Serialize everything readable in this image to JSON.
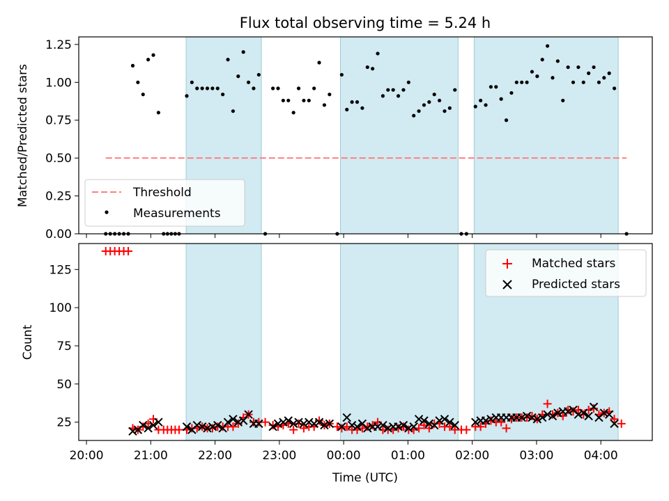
{
  "chart_data": {
    "title": "Flux total observing time = 5.24 h",
    "xlabel": "Time (UTC)",
    "x_unit": "hours since 20:00 UTC",
    "xlim": [
      -0.12,
      8.8
    ],
    "xticks": [
      {
        "v": 0,
        "label": "20:00"
      },
      {
        "v": 1,
        "label": "21:00"
      },
      {
        "v": 2,
        "label": "22:00"
      },
      {
        "v": 3,
        "label": "23:00"
      },
      {
        "v": 4,
        "label": "00:00"
      },
      {
        "v": 5,
        "label": "01:00"
      },
      {
        "v": 6,
        "label": "02:00"
      },
      {
        "v": 7,
        "label": "03:00"
      },
      {
        "v": 8,
        "label": "04:00"
      }
    ],
    "observing_intervals": [
      [
        1.55,
        2.72
      ],
      [
        3.95,
        5.78
      ],
      [
        6.03,
        8.27
      ]
    ],
    "shade_color": "#add8e6",
    "top": {
      "type": "scatter",
      "ylabel": "Matched/Predicted stars",
      "ylim": [
        0,
        1.3
      ],
      "yticks": [
        0,
        0.25,
        0.5,
        0.75,
        1.0,
        1.25
      ],
      "ytick_labels": [
        "0.00",
        "0.25",
        "0.50",
        "0.75",
        "1.00",
        "1.25"
      ],
      "threshold": {
        "name": "Threshold",
        "y": 0.5,
        "x": [
          0.3,
          8.4
        ],
        "color": "#ff7f7f"
      },
      "measurements": {
        "name": "Measurements",
        "color": "#000000",
        "points": [
          [
            0.3,
            0
          ],
          [
            0.37,
            0
          ],
          [
            0.44,
            0
          ],
          [
            0.51,
            0
          ],
          [
            0.58,
            0
          ],
          [
            0.65,
            0
          ],
          [
            0.72,
            1.11
          ],
          [
            0.8,
            1.0
          ],
          [
            0.88,
            0.92
          ],
          [
            0.96,
            1.15
          ],
          [
            1.04,
            1.18
          ],
          [
            1.12,
            0.8
          ],
          [
            1.2,
            0
          ],
          [
            1.26,
            0
          ],
          [
            1.32,
            0
          ],
          [
            1.38,
            0
          ],
          [
            1.44,
            0
          ],
          [
            1.56,
            0.91
          ],
          [
            1.64,
            1.0
          ],
          [
            1.72,
            0.96
          ],
          [
            1.8,
            0.96
          ],
          [
            1.88,
            0.96
          ],
          [
            1.96,
            0.96
          ],
          [
            2.04,
            0.96
          ],
          [
            2.12,
            0.92
          ],
          [
            2.2,
            1.15
          ],
          [
            2.28,
            0.81
          ],
          [
            2.36,
            1.04
          ],
          [
            2.44,
            1.2
          ],
          [
            2.52,
            1.0
          ],
          [
            2.6,
            0.96
          ],
          [
            2.68,
            1.05
          ],
          [
            2.78,
            0
          ],
          [
            2.9,
            0.96
          ],
          [
            2.98,
            0.96
          ],
          [
            3.06,
            0.88
          ],
          [
            3.14,
            0.88
          ],
          [
            3.22,
            0.8
          ],
          [
            3.3,
            0.96
          ],
          [
            3.38,
            0.88
          ],
          [
            3.46,
            0.88
          ],
          [
            3.54,
            0.96
          ],
          [
            3.62,
            1.13
          ],
          [
            3.7,
            0.85
          ],
          [
            3.78,
            0.92
          ],
          [
            3.9,
            0
          ],
          [
            3.97,
            1.05
          ],
          [
            4.05,
            0.82
          ],
          [
            4.13,
            0.87
          ],
          [
            4.21,
            0.87
          ],
          [
            4.29,
            0.83
          ],
          [
            4.37,
            1.1
          ],
          [
            4.45,
            1.09
          ],
          [
            4.53,
            1.19
          ],
          [
            4.61,
            0.91
          ],
          [
            4.69,
            0.95
          ],
          [
            4.77,
            0.95
          ],
          [
            4.85,
            0.91
          ],
          [
            4.93,
            0.95
          ],
          [
            5.01,
            1.0
          ],
          [
            5.09,
            0.78
          ],
          [
            5.17,
            0.81
          ],
          [
            5.25,
            0.85
          ],
          [
            5.33,
            0.87
          ],
          [
            5.41,
            0.92
          ],
          [
            5.49,
            0.88
          ],
          [
            5.57,
            0.81
          ],
          [
            5.65,
            0.83
          ],
          [
            5.73,
            0.95
          ],
          [
            5.83,
            0
          ],
          [
            5.91,
            0
          ],
          [
            6.05,
            0.84
          ],
          [
            6.13,
            0.88
          ],
          [
            6.21,
            0.85
          ],
          [
            6.29,
            0.97
          ],
          [
            6.37,
            0.97
          ],
          [
            6.45,
            0.89
          ],
          [
            6.53,
            0.75
          ],
          [
            6.61,
            0.93
          ],
          [
            6.69,
            1.0
          ],
          [
            6.77,
            1.0
          ],
          [
            6.85,
            1.0
          ],
          [
            6.93,
            1.07
          ],
          [
            7.01,
            1.04
          ],
          [
            7.09,
            1.15
          ],
          [
            7.17,
            1.24
          ],
          [
            7.25,
            1.03
          ],
          [
            7.33,
            1.14
          ],
          [
            7.41,
            0.88
          ],
          [
            7.49,
            1.1
          ],
          [
            7.57,
            1.0
          ],
          [
            7.65,
            1.1
          ],
          [
            7.73,
            1.0
          ],
          [
            7.81,
            1.06
          ],
          [
            7.89,
            1.1
          ],
          [
            7.97,
            1.0
          ],
          [
            8.05,
            1.03
          ],
          [
            8.13,
            1.06
          ],
          [
            8.21,
            0.96
          ],
          [
            8.4,
            0
          ]
        ]
      },
      "legend": "lower-left"
    },
    "bottom": {
      "type": "scatter",
      "ylabel": "Count",
      "ylim": [
        13,
        142
      ],
      "yticks": [
        25,
        50,
        75,
        100,
        125
      ],
      "ytick_labels": [
        "25",
        "50",
        "75",
        "100",
        "125"
      ],
      "matched": {
        "name": "Matched stars",
        "color": "#ff0000",
        "points": [
          [
            0.3,
            137
          ],
          [
            0.37,
            137
          ],
          [
            0.44,
            137
          ],
          [
            0.51,
            137
          ],
          [
            0.58,
            137
          ],
          [
            0.65,
            137
          ],
          [
            0.72,
            21
          ],
          [
            0.8,
            20
          ],
          [
            0.88,
            22
          ],
          [
            0.96,
            24
          ],
          [
            1.04,
            27
          ],
          [
            1.12,
            20
          ],
          [
            1.2,
            20
          ],
          [
            1.26,
            20
          ],
          [
            1.32,
            20
          ],
          [
            1.38,
            20
          ],
          [
            1.44,
            20
          ],
          [
            1.56,
            20
          ],
          [
            1.64,
            21
          ],
          [
            1.72,
            21
          ],
          [
            1.8,
            22
          ],
          [
            1.88,
            21
          ],
          [
            1.96,
            21
          ],
          [
            2.04,
            22
          ],
          [
            2.12,
            22
          ],
          [
            2.2,
            22
          ],
          [
            2.28,
            22
          ],
          [
            2.36,
            24
          ],
          [
            2.44,
            28
          ],
          [
            2.52,
            30
          ],
          [
            2.6,
            25
          ],
          [
            2.68,
            25
          ],
          [
            2.78,
            25
          ],
          [
            2.9,
            23
          ],
          [
            2.98,
            22
          ],
          [
            3.06,
            23
          ],
          [
            3.14,
            24
          ],
          [
            3.22,
            20
          ],
          [
            3.3,
            24
          ],
          [
            3.38,
            21
          ],
          [
            3.46,
            22
          ],
          [
            3.54,
            22
          ],
          [
            3.62,
            26
          ],
          [
            3.7,
            23
          ],
          [
            3.78,
            24
          ],
          [
            3.9,
            22
          ],
          [
            3.97,
            21
          ],
          [
            4.05,
            22
          ],
          [
            4.13,
            20
          ],
          [
            4.21,
            20
          ],
          [
            4.29,
            21
          ],
          [
            4.37,
            22
          ],
          [
            4.45,
            23
          ],
          [
            4.53,
            25
          ],
          [
            4.61,
            20
          ],
          [
            4.69,
            20
          ],
          [
            4.77,
            20
          ],
          [
            4.85,
            21
          ],
          [
            4.93,
            22
          ],
          [
            5.01,
            20
          ],
          [
            5.09,
            20
          ],
          [
            5.17,
            21
          ],
          [
            5.25,
            23
          ],
          [
            5.33,
            21
          ],
          [
            5.41,
            24
          ],
          [
            5.49,
            24
          ],
          [
            5.57,
            22
          ],
          [
            5.65,
            22
          ],
          [
            5.73,
            20
          ],
          [
            5.83,
            20
          ],
          [
            5.91,
            20
          ],
          [
            6.05,
            22
          ],
          [
            6.13,
            22
          ],
          [
            6.21,
            24
          ],
          [
            6.29,
            26
          ],
          [
            6.37,
            25
          ],
          [
            6.45,
            25
          ],
          [
            6.53,
            21
          ],
          [
            6.61,
            27
          ],
          [
            6.69,
            28
          ],
          [
            6.77,
            28
          ],
          [
            6.85,
            28
          ],
          [
            6.93,
            29
          ],
          [
            7.01,
            27
          ],
          [
            7.09,
            30
          ],
          [
            7.17,
            37
          ],
          [
            7.25,
            30
          ],
          [
            7.33,
            31
          ],
          [
            7.41,
            29
          ],
          [
            7.49,
            33
          ],
          [
            7.57,
            32
          ],
          [
            7.65,
            33
          ],
          [
            7.73,
            30
          ],
          [
            7.81,
            33
          ],
          [
            7.89,
            34
          ],
          [
            7.97,
            30
          ],
          [
            8.05,
            31
          ],
          [
            8.13,
            32
          ],
          [
            8.21,
            27
          ],
          [
            8.32,
            24
          ]
        ]
      },
      "predicted": {
        "name": "Predicted stars",
        "color": "#000000",
        "points": [
          [
            0.72,
            19
          ],
          [
            0.8,
            20
          ],
          [
            0.88,
            23
          ],
          [
            0.96,
            21
          ],
          [
            1.04,
            23
          ],
          [
            1.12,
            25
          ],
          [
            1.56,
            22
          ],
          [
            1.64,
            20
          ],
          [
            1.72,
            23
          ],
          [
            1.8,
            22
          ],
          [
            1.88,
            21
          ],
          [
            1.96,
            22
          ],
          [
            2.04,
            23
          ],
          [
            2.12,
            21
          ],
          [
            2.2,
            25
          ],
          [
            2.28,
            27
          ],
          [
            2.36,
            25
          ],
          [
            2.44,
            26
          ],
          [
            2.52,
            30
          ],
          [
            2.6,
            24
          ],
          [
            2.68,
            24
          ],
          [
            2.9,
            22
          ],
          [
            2.98,
            24
          ],
          [
            3.06,
            25
          ],
          [
            3.14,
            26
          ],
          [
            3.22,
            24
          ],
          [
            3.3,
            25
          ],
          [
            3.38,
            24
          ],
          [
            3.46,
            25
          ],
          [
            3.54,
            24
          ],
          [
            3.62,
            25
          ],
          [
            3.7,
            23
          ],
          [
            3.78,
            24
          ],
          [
            3.97,
            22
          ],
          [
            4.05,
            28
          ],
          [
            4.13,
            23
          ],
          [
            4.21,
            22
          ],
          [
            4.29,
            24
          ],
          [
            4.37,
            21
          ],
          [
            4.45,
            22
          ],
          [
            4.53,
            22
          ],
          [
            4.61,
            23
          ],
          [
            4.69,
            21
          ],
          [
            4.77,
            22
          ],
          [
            4.85,
            22
          ],
          [
            4.93,
            23
          ],
          [
            5.01,
            21
          ],
          [
            5.09,
            22
          ],
          [
            5.17,
            27
          ],
          [
            5.25,
            26
          ],
          [
            5.33,
            24
          ],
          [
            5.41,
            23
          ],
          [
            5.49,
            26
          ],
          [
            5.57,
            27
          ],
          [
            5.65,
            25
          ],
          [
            5.73,
            23
          ],
          [
            6.05,
            25
          ],
          [
            6.13,
            26
          ],
          [
            6.21,
            26
          ],
          [
            6.29,
            27
          ],
          [
            6.37,
            28
          ],
          [
            6.45,
            28
          ],
          [
            6.53,
            28
          ],
          [
            6.61,
            28
          ],
          [
            6.69,
            28
          ],
          [
            6.77,
            28
          ],
          [
            6.85,
            29
          ],
          [
            6.93,
            28
          ],
          [
            7.01,
            27
          ],
          [
            7.09,
            28
          ],
          [
            7.17,
            30
          ],
          [
            7.25,
            29
          ],
          [
            7.33,
            31
          ],
          [
            7.41,
            32
          ],
          [
            7.49,
            32
          ],
          [
            7.57,
            33
          ],
          [
            7.65,
            30
          ],
          [
            7.73,
            31
          ],
          [
            7.81,
            29
          ],
          [
            7.89,
            35
          ],
          [
            7.97,
            28
          ],
          [
            8.05,
            31
          ],
          [
            8.13,
            30
          ],
          [
            8.21,
            24
          ]
        ]
      },
      "legend": "upper-right"
    }
  }
}
